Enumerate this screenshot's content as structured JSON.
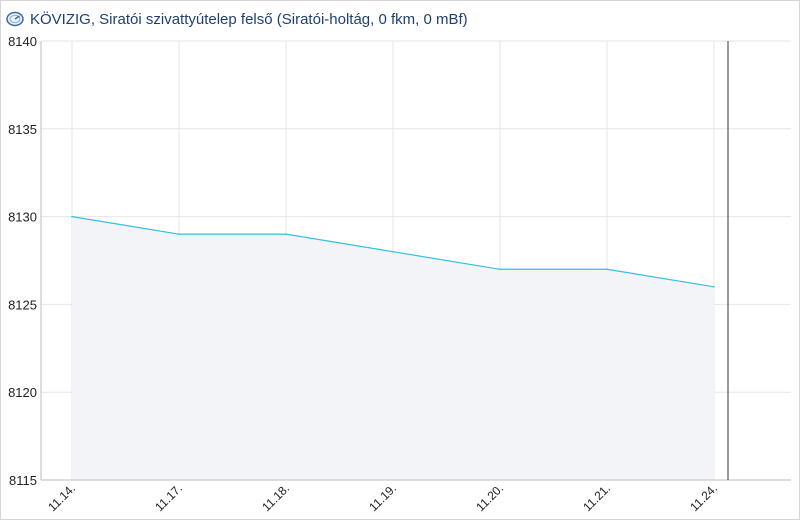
{
  "header": {
    "title": "KÖVIZIG, Siratói szivattyútelep felső (Siratói-holtág, 0 fkm, 0 mBf)",
    "icon": "gauge-icon"
  },
  "colors": {
    "line": "#39bde0",
    "area": "#f2f4f8",
    "grid": "#e6e6e6",
    "title": "#1f3f73",
    "now_marker": "#333333"
  },
  "chart_data": {
    "type": "area",
    "title": "",
    "xlabel": "",
    "ylabel": "",
    "ylim": [
      8115,
      8140
    ],
    "yticks": [
      8115,
      8120,
      8125,
      8130,
      8135,
      8140
    ],
    "categories": [
      "11.14.",
      "11.17.",
      "11.18.",
      "11.19.",
      "11.20.",
      "11.21.",
      "11.24."
    ],
    "series": [
      {
        "values": [
          8130,
          8129,
          8129,
          8128,
          8127,
          8127,
          8126
        ]
      }
    ],
    "grid": true,
    "legend": "none",
    "now_marker": true
  }
}
